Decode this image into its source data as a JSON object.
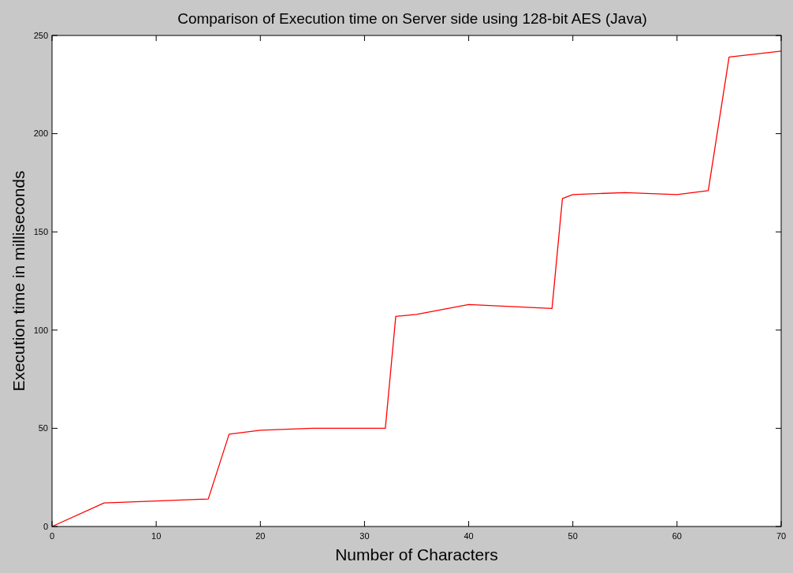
{
  "chart_data": {
    "type": "line",
    "title": "Comparison of Execution time on Server side using 128-bit AES (Java)",
    "xlabel": "Number of Characters",
    "ylabel": "Execution time in milliseconds",
    "x": [
      0,
      5,
      10,
      15,
      17,
      20,
      25,
      32,
      33,
      35,
      40,
      48,
      49,
      50,
      55,
      60,
      63,
      65,
      70
    ],
    "series": [
      {
        "color": "#ff0000",
        "values": [
          0,
          12,
          13,
          14,
          47,
          49,
          50,
          50,
          107,
          108,
          113,
          111,
          167,
          169,
          170,
          169,
          171,
          239,
          242
        ]
      }
    ],
    "xlim": [
      0,
      70
    ],
    "xticks": [
      0,
      10,
      20,
      30,
      40,
      50,
      60,
      70
    ],
    "ylim": [
      0,
      250
    ],
    "yticks": [
      0,
      50,
      100,
      150,
      200,
      250
    ],
    "grid": false,
    "marker": "none",
    "line_style": "solid"
  }
}
